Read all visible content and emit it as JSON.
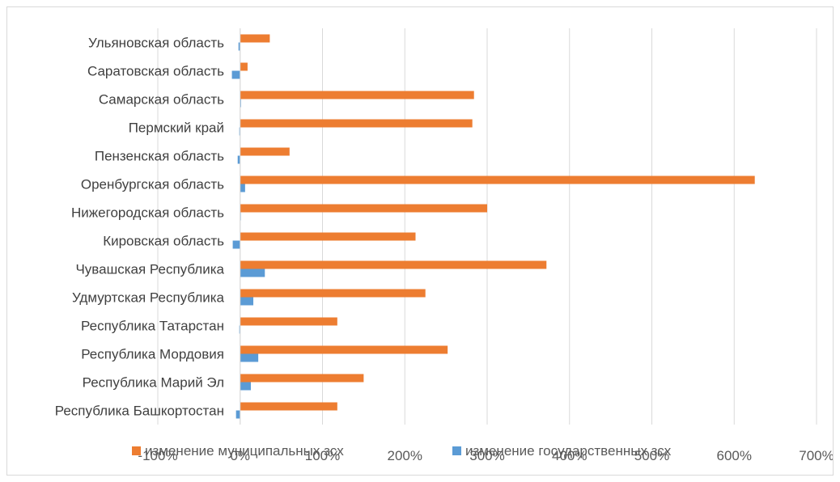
{
  "chart_data": {
    "type": "bar",
    "orientation": "horizontal",
    "categories": [
      "Республика Башкортостан",
      "Республика Марий Эл",
      "Республика Мордовия",
      "Республика Татарстан",
      "Удмуртская Республика",
      "Чувашская Республика ",
      "Кировская область",
      "Нижегородская область",
      "Оренбургская область",
      "Пензенская область",
      "Пермский край",
      "Самарская область",
      "Саратовская область",
      "Ульяновская область"
    ],
    "series": [
      {
        "name": "изменение муниципальных зсх",
        "color": "#ED7D31",
        "values": [
          1.18,
          1.5,
          2.52,
          1.18,
          2.25,
          3.72,
          2.13,
          3.0,
          6.25,
          0.6,
          2.82,
          2.84,
          0.09,
          0.36
        ]
      },
      {
        "name": "изменение государственных зсх",
        "color": "#5B9BD5",
        "values": [
          -0.05,
          0.13,
          0.22,
          -0.01,
          0.16,
          0.3,
          -0.09,
          0.0,
          0.06,
          -0.03,
          -0.01,
          0.01,
          -0.1,
          -0.02
        ]
      }
    ],
    "xlim": [
      -1,
      7
    ],
    "xticks": [
      "-100%",
      "0%",
      "100%",
      "200%",
      "300%",
      "400%",
      "500%",
      "600%",
      "700%"
    ],
    "grid": true,
    "legend_position": "bottom"
  }
}
